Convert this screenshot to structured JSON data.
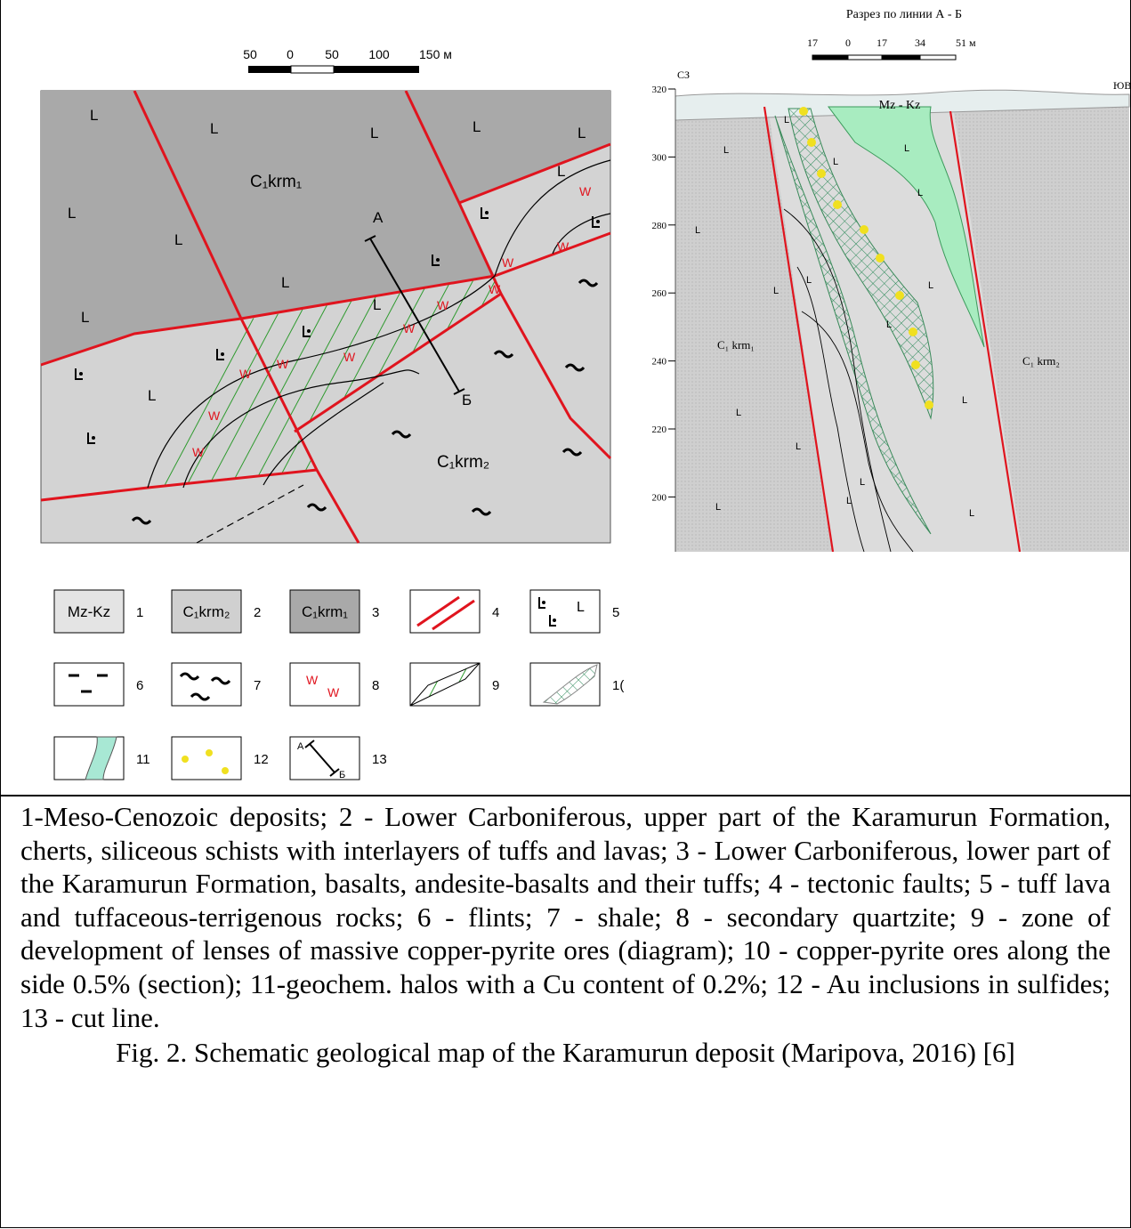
{
  "map": {
    "scale_labels": [
      "50",
      "0",
      "50",
      "100",
      "150 м"
    ],
    "unit_lower": "C₁krm₁",
    "unit_upper": "C₁krm₂",
    "line_start": "А",
    "line_end": "Б",
    "lava_symbol": "L",
    "quartzite_symbol": "W"
  },
  "section": {
    "title": "Разрез по линии А - Б",
    "scale_labels": [
      "17",
      "0",
      "17",
      "34",
      "51 м"
    ],
    "left_end": "СЗ",
    "right_end": "ЮВ",
    "cover": "Mz - Kz",
    "yticks": [
      320,
      300,
      280,
      260,
      240,
      220,
      200
    ],
    "unit_lower": "C₁ krm₁",
    "unit_upper": "C₁ krm₂",
    "lava_symbol": "L"
  },
  "legend": {
    "items": [
      {
        "box": "Mz-Kz",
        "number": "1"
      },
      {
        "box": "C₁krm₂",
        "number": "2"
      },
      {
        "box": "C₁krm₁",
        "number": "3"
      },
      {
        "number": "4"
      },
      {
        "number": "5"
      },
      {
        "number": "6"
      },
      {
        "number": "7"
      },
      {
        "number": "8"
      },
      {
        "number": "9"
      },
      {
        "number": "1("
      },
      {
        "number": "11"
      },
      {
        "number": "12"
      },
      {
        "number": "13"
      }
    ],
    "cut_start": "А",
    "cut_end": "Б",
    "lava_symbol": "L",
    "quartzite_symbol": "W"
  },
  "caption": {
    "legend_text": "1-Meso-Cenozoic deposits; 2 - Lower Carboniferous, upper part of the Karamurun Formation, cherts, siliceous schists with interlayers of tuffs and lavas; 3 - Lower Carboniferous, lower part of the Karamurun Formation, basalts, andesite-basalts and their tuffs; 4 - tectonic faults; 5 - tuff lava and tuffaceous-terrigenous rocks; 6 - flints; 7 - shale; 8 - secondary quartzite; 9 - zone of development of lenses of massive copper-pyrite ores (diagram); 10 - copper-pyrite ores along the side 0.5% (section); 11-geochem. halos with a Cu content of 0.2%; 12 - Au inclusions in sulfides; 13 - cut line.",
    "figure": "Fig. 2. Schematic geological map of the Karamurun deposit (Maripova, 2016) [6]"
  }
}
